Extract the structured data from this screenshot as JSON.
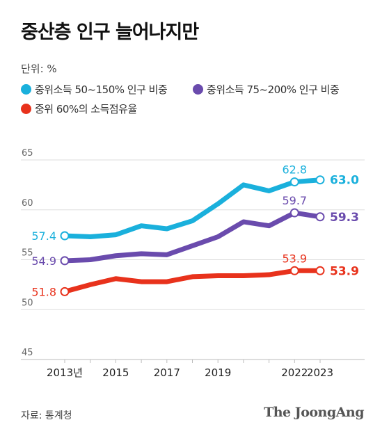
{
  "chart_data": {
    "type": "line",
    "title": "중산층 인구 늘어나지만",
    "unit_label": "단위: %",
    "ylim": [
      45,
      65
    ],
    "yticks": [
      45,
      50,
      55,
      60,
      65
    ],
    "x": [
      2013,
      2014,
      2015,
      2016,
      2017,
      2018,
      2019,
      2020,
      2021,
      2022,
      2023
    ],
    "xtick_labels": [
      {
        "x": 2013,
        "label": "2013년"
      },
      {
        "x": 2015,
        "label": "2015"
      },
      {
        "x": 2017,
        "label": "2017"
      },
      {
        "x": 2019,
        "label": "2019"
      },
      {
        "x": 2022,
        "label": "2022"
      },
      {
        "x": 2023,
        "label": "2023"
      }
    ],
    "grid": true,
    "legend_position": "top-left",
    "series": [
      {
        "name": "중위소득 50~150% 인구 비중",
        "color": "#1ab0dc",
        "values": [
          57.4,
          57.3,
          57.5,
          58.4,
          58.1,
          58.9,
          60.6,
          62.5,
          61.9,
          62.8,
          63.0
        ],
        "labels": [
          {
            "x": 2013,
            "text": "57.4",
            "bold": false
          },
          {
            "x": 2022,
            "text": "62.8",
            "bold": false
          },
          {
            "x": 2023,
            "text": "63.0",
            "bold": true
          }
        ]
      },
      {
        "name": "중위소득 75~200% 인구 비중",
        "color": "#6a4bad",
        "values": [
          54.9,
          55.0,
          55.4,
          55.6,
          55.5,
          56.4,
          57.3,
          58.8,
          58.4,
          59.7,
          59.3
        ],
        "labels": [
          {
            "x": 2013,
            "text": "54.9",
            "bold": false
          },
          {
            "x": 2022,
            "text": "59.7",
            "bold": false
          },
          {
            "x": 2023,
            "text": "59.3",
            "bold": true
          }
        ]
      },
      {
        "name": "중위 60%의 소득점유율",
        "color": "#e8321c",
        "values": [
          51.8,
          52.5,
          53.1,
          52.8,
          52.8,
          53.3,
          53.4,
          53.4,
          53.5,
          53.9,
          53.9
        ],
        "labels": [
          {
            "x": 2013,
            "text": "51.8",
            "bold": false
          },
          {
            "x": 2022,
            "text": "53.9",
            "bold": false
          },
          {
            "x": 2023,
            "text": "53.9",
            "bold": true
          }
        ]
      }
    ]
  },
  "footer": {
    "source": "자료: 통계청",
    "brand": "The JoongAng"
  }
}
